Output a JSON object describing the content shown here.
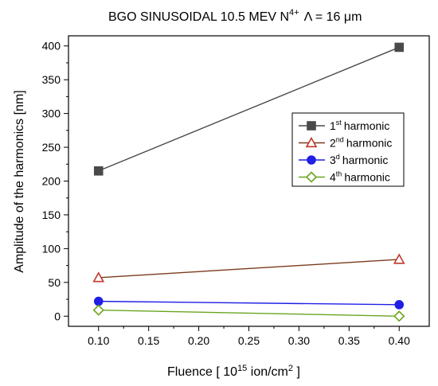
{
  "chart_data": {
    "type": "line",
    "title": {
      "main": "BGO SINUSOIDAL 10.5 MEV N",
      "charge": "4+",
      "lambda": "Λ = 16 μm"
    },
    "xlabel": {
      "pre": "Fluence [ 10",
      "exp": "15",
      "post": " ion/cm",
      "exp2": "2",
      "end": " ]"
    },
    "ylabel": "Amplitude of the harmonics [nm]",
    "xlim": [
      0.07,
      0.43
    ],
    "ylim": [
      -15,
      415
    ],
    "xticks": [
      0.1,
      0.15,
      0.2,
      0.25,
      0.3,
      0.35,
      0.4
    ],
    "xtick_labels": [
      "0.10",
      "0.15",
      "0.20",
      "0.25",
      "0.30",
      "0.35",
      "0.40"
    ],
    "yticks": [
      0,
      50,
      100,
      150,
      200,
      250,
      300,
      350,
      400
    ],
    "ytick_labels": [
      "0",
      "50",
      "100",
      "150",
      "200",
      "250",
      "300",
      "350",
      "400"
    ],
    "x": [
      0.1,
      0.4
    ],
    "grid": false,
    "legend_position": "right",
    "series": [
      {
        "name": "harmonic",
        "ord": "1",
        "sup": "st",
        "values": [
          215,
          398
        ],
        "color": "#4a4a4a",
        "marker": "square",
        "fill": "filled"
      },
      {
        "name": "harmonic",
        "ord": "2",
        "sup": "nd",
        "values": [
          57,
          84
        ],
        "color": "#c0392b",
        "line_color": "#7b3b1e",
        "marker": "triangle",
        "fill": "open"
      },
      {
        "name": "harmonic",
        "ord": "3",
        "sup": "d",
        "values": [
          22,
          17
        ],
        "color": "#1f1fe6",
        "marker": "circle",
        "fill": "filled"
      },
      {
        "name": "harmonic",
        "ord": "4",
        "sup": "th",
        "values": [
          9,
          0
        ],
        "color": "#6aa51e",
        "marker": "diamond",
        "fill": "open"
      }
    ]
  }
}
